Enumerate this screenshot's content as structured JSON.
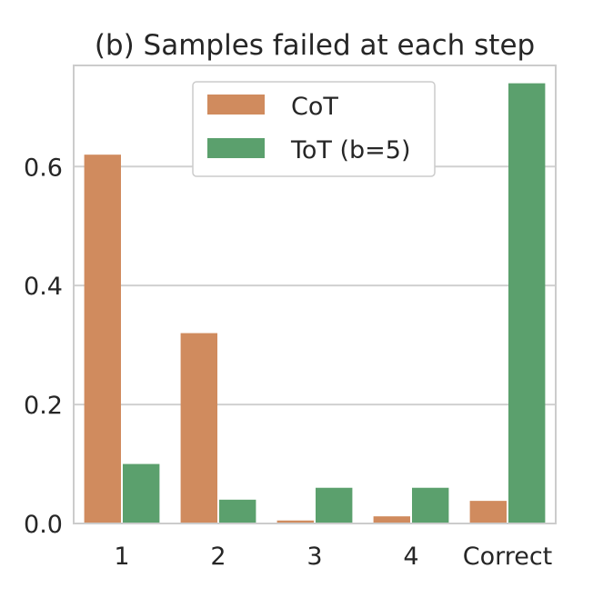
{
  "chart_data": {
    "type": "bar",
    "title": "(b) Samples failed at each step",
    "xlabel": "",
    "ylabel": "",
    "categories": [
      "1",
      "2",
      "3",
      "4",
      "Correct"
    ],
    "series": [
      {
        "name": "CoT",
        "color": "#d08b5e",
        "values": [
          0.62,
          0.32,
          0.005,
          0.012,
          0.038
        ]
      },
      {
        "name": "ToT (b=5)",
        "color": "#5ba06d",
        "values": [
          0.1,
          0.04,
          0.06,
          0.06,
          0.74
        ]
      }
    ],
    "ylim": [
      0,
      0.77
    ],
    "yticks": [
      0.0,
      0.2,
      0.4,
      0.6
    ],
    "ytick_labels": [
      "0.0",
      "0.2",
      "0.4",
      "0.6"
    ],
    "grid": "horizontal",
    "legend_position": "top-center"
  }
}
